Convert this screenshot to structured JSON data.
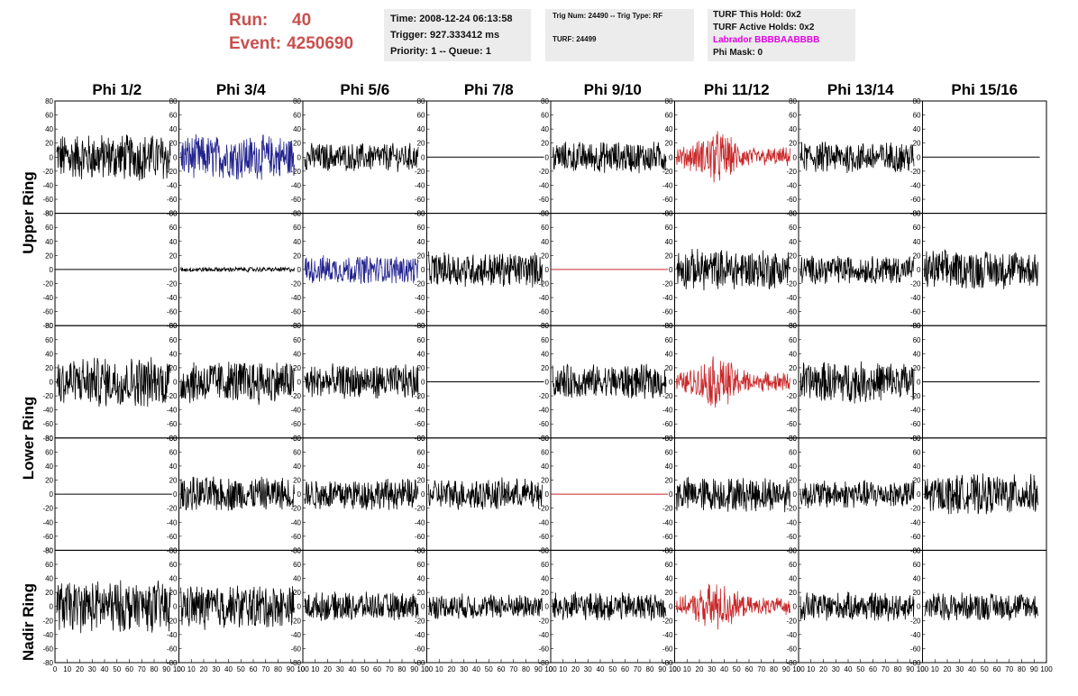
{
  "header": {
    "run_label": "Run:",
    "run_value": "40",
    "event_label": "Event:",
    "event_value": "4250690"
  },
  "info_time": {
    "time": "Time: 2008-12-24 06:13:58",
    "trigger": "Trigger: 927.333412 ms",
    "priority": "Priority: 1 -- Queue: 1"
  },
  "info_trig": {
    "trig": "Trig Num: 24490 -- Trig Type: RF",
    "turf": "TURF: 24499"
  },
  "info_turf": {
    "hold": "TURF This Hold: 0x2",
    "active": "TURF Active Holds: 0x2",
    "labrador": "Labrador BBBBAABBBB",
    "mask": "Phi Mask: 0"
  },
  "colors": {
    "black": "#000000",
    "blue": "#22228e",
    "red": "#c8282a",
    "accent": "#c8504f",
    "magenta": "#e000e0",
    "box_bg": "#ececec"
  },
  "chart_data": {
    "type": "line",
    "columns": [
      "Phi 1/2",
      "Phi 3/4",
      "Phi 5/6",
      "Phi 7/8",
      "Phi 9/10",
      "Phi 11/12",
      "Phi 13/14",
      "Phi 15/16"
    ],
    "row_labels": [
      "Upper Ring",
      "Lower Ring",
      "Nadir Ring"
    ],
    "ylim": [
      -80,
      80
    ],
    "xlim": [
      0,
      100
    ],
    "y_ticks": [
      "80",
      "60",
      "40",
      "20",
      "0",
      "-20",
      "-40",
      "-60",
      "-80"
    ],
    "x_ticks": [
      "0",
      "10",
      "20",
      "30",
      "40",
      "50",
      "60",
      "70",
      "80",
      "90",
      "100"
    ],
    "grid": false,
    "panels": [
      [
        {
          "color": "black",
          "amp": 30,
          "flat": false,
          "envelope": "uniform"
        },
        {
          "color": "blue",
          "amp": 28,
          "flat": false,
          "envelope": "uniform"
        },
        {
          "color": "black",
          "amp": 18,
          "flat": false,
          "envelope": "uniform"
        },
        {
          "color": "black",
          "amp": 0,
          "flat": true,
          "envelope": "uniform"
        },
        {
          "color": "black",
          "amp": 20,
          "flat": false,
          "envelope": "uniform"
        },
        {
          "color": "red",
          "amp": 28,
          "flat": false,
          "envelope": "pulse"
        },
        {
          "color": "black",
          "amp": 20,
          "flat": false,
          "envelope": "uniform"
        },
        {
          "color": "black",
          "amp": 0,
          "flat": true,
          "envelope": "uniform"
        }
      ],
      [
        {
          "color": "black",
          "amp": 0,
          "flat": true,
          "envelope": "uniform"
        },
        {
          "color": "black",
          "amp": 3,
          "flat": false,
          "envelope": "uniform"
        },
        {
          "color": "blue",
          "amp": 18,
          "flat": false,
          "envelope": "uniform"
        },
        {
          "color": "black",
          "amp": 22,
          "flat": false,
          "envelope": "uniform"
        },
        {
          "color": "red",
          "amp": 0,
          "flat": true,
          "envelope": "uniform"
        },
        {
          "color": "black",
          "amp": 26,
          "flat": false,
          "envelope": "uniform"
        },
        {
          "color": "black",
          "amp": 18,
          "flat": false,
          "envelope": "uniform"
        },
        {
          "color": "black",
          "amp": 25,
          "flat": false,
          "envelope": "uniform"
        }
      ],
      [
        {
          "color": "black",
          "amp": 32,
          "flat": false,
          "envelope": "uniform"
        },
        {
          "color": "black",
          "amp": 28,
          "flat": false,
          "envelope": "uniform"
        },
        {
          "color": "black",
          "amp": 22,
          "flat": false,
          "envelope": "uniform"
        },
        {
          "color": "black",
          "amp": 0,
          "flat": true,
          "envelope": "uniform"
        },
        {
          "color": "black",
          "amp": 22,
          "flat": false,
          "envelope": "uniform"
        },
        {
          "color": "red",
          "amp": 28,
          "flat": false,
          "envelope": "pulse"
        },
        {
          "color": "black",
          "amp": 26,
          "flat": false,
          "envelope": "uniform"
        },
        {
          "color": "black",
          "amp": 0,
          "flat": true,
          "envelope": "uniform"
        }
      ],
      [
        {
          "color": "black",
          "amp": 0,
          "flat": true,
          "envelope": "uniform"
        },
        {
          "color": "black",
          "amp": 22,
          "flat": false,
          "envelope": "uniform"
        },
        {
          "color": "black",
          "amp": 20,
          "flat": false,
          "envelope": "uniform"
        },
        {
          "color": "black",
          "amp": 20,
          "flat": false,
          "envelope": "uniform"
        },
        {
          "color": "red",
          "amp": 0,
          "flat": true,
          "envelope": "uniform"
        },
        {
          "color": "black",
          "amp": 22,
          "flat": false,
          "envelope": "uniform"
        },
        {
          "color": "black",
          "amp": 18,
          "flat": false,
          "envelope": "uniform"
        },
        {
          "color": "black",
          "amp": 25,
          "flat": false,
          "envelope": "uniform"
        }
      ],
      [
        {
          "color": "black",
          "amp": 33,
          "flat": false,
          "envelope": "uniform"
        },
        {
          "color": "black",
          "amp": 28,
          "flat": false,
          "envelope": "uniform"
        },
        {
          "color": "black",
          "amp": 18,
          "flat": false,
          "envelope": "uniform"
        },
        {
          "color": "black",
          "amp": 16,
          "flat": false,
          "envelope": "uniform"
        },
        {
          "color": "black",
          "amp": 18,
          "flat": false,
          "envelope": "uniform"
        },
        {
          "color": "red",
          "amp": 26,
          "flat": false,
          "envelope": "pulse"
        },
        {
          "color": "black",
          "amp": 18,
          "flat": false,
          "envelope": "uniform"
        },
        {
          "color": "black",
          "amp": 18,
          "flat": false,
          "envelope": "uniform"
        }
      ]
    ]
  }
}
